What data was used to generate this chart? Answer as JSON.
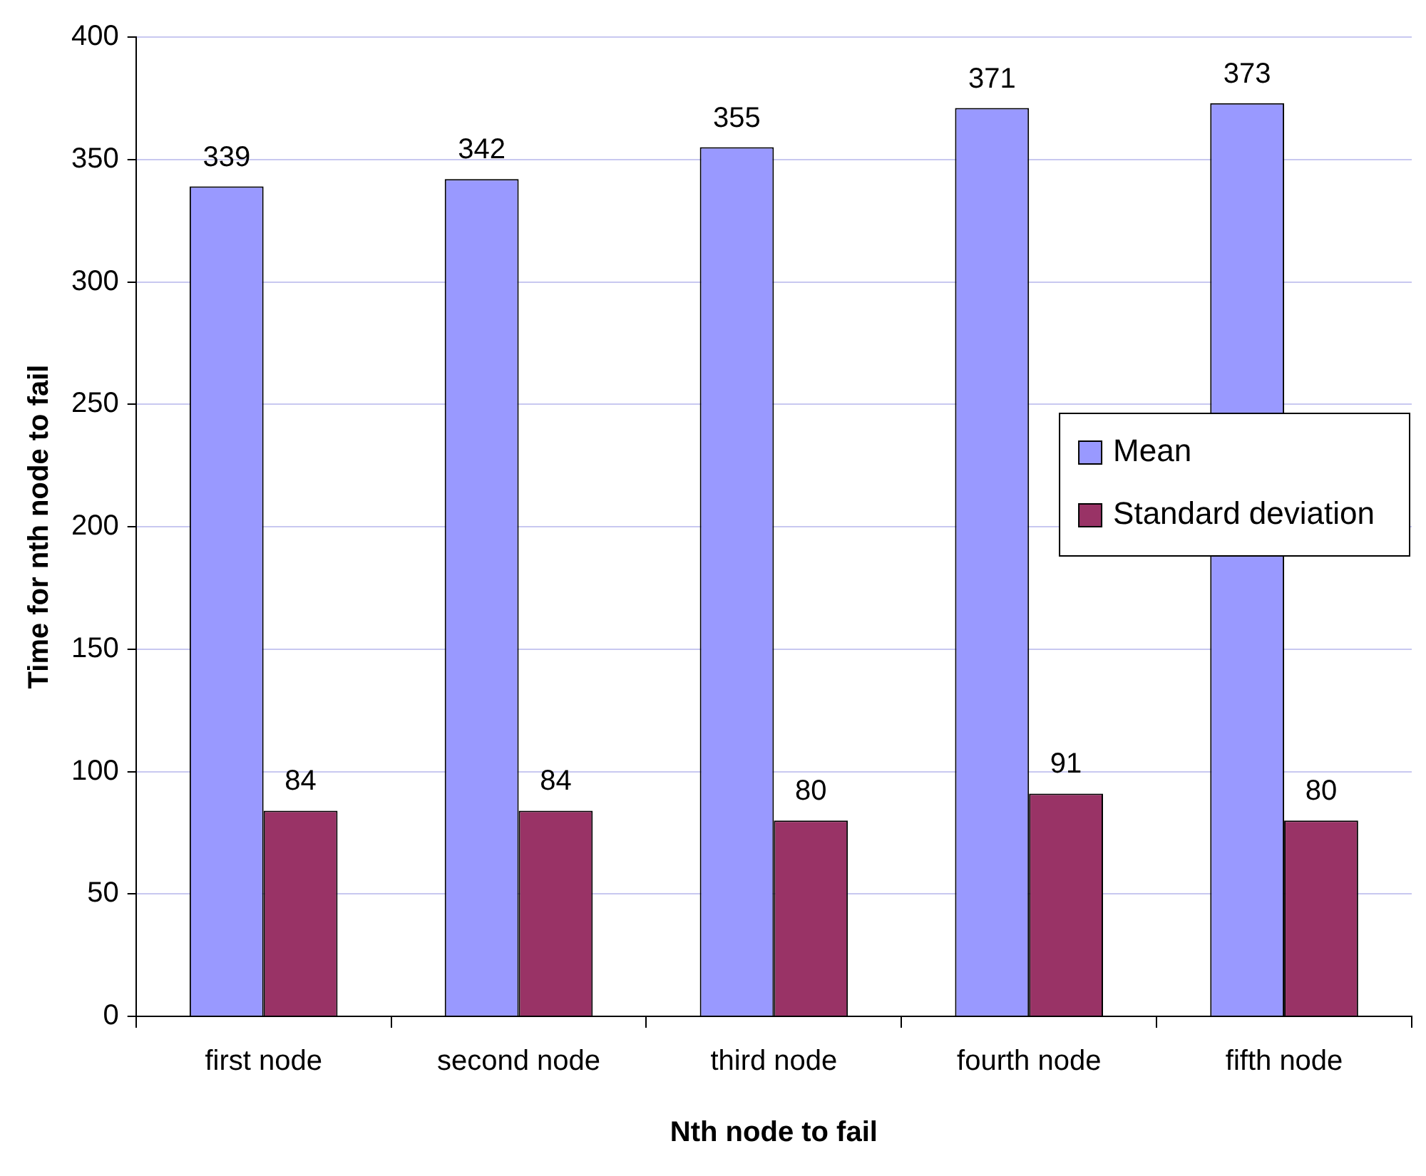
{
  "chart_data": {
    "type": "bar",
    "xlabel": "Nth node to fail",
    "ylabel": "Time for nth node to fail",
    "categories": [
      "first node",
      "second node",
      "third node",
      "fourth node",
      "fifth node"
    ],
    "series": [
      {
        "name": "Mean",
        "color": "#9999ff",
        "values": [
          339,
          342,
          355,
          371,
          373
        ]
      },
      {
        "name": "Standard deviation",
        "color": "#993366",
        "values": [
          84,
          84,
          80,
          91,
          80
        ]
      }
    ],
    "ylim": [
      0,
      400
    ],
    "yticks": [
      0,
      50,
      100,
      150,
      200,
      250,
      300,
      350,
      400
    ],
    "grid": "y",
    "legend": "right",
    "data_labels": true
  }
}
